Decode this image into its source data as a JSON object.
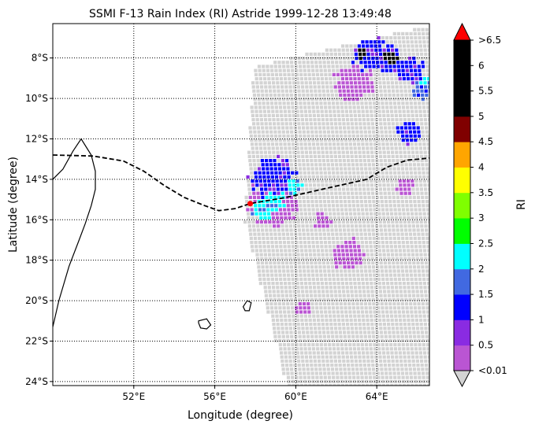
{
  "chart_data": {
    "type": "heatmap",
    "title": "SSMI F-13 Rain Index (RI) Astride 1999-12-28 13:49:48",
    "xlabel": "Longitude (degree)",
    "ylabel": "Latitude (degree)",
    "xlim": [
      48.0,
      66.6
    ],
    "ylim": [
      -24.2,
      -6.3
    ],
    "x_ticks": [
      {
        "value": 52,
        "label": "52°E"
      },
      {
        "value": 56,
        "label": "56°E"
      },
      {
        "value": 60,
        "label": "60°E"
      },
      {
        "value": 64,
        "label": "64°E"
      }
    ],
    "y_ticks": [
      {
        "value": -8,
        "label": "8°S"
      },
      {
        "value": -10,
        "label": "10°S"
      },
      {
        "value": -12,
        "label": "12°S"
      },
      {
        "value": -14,
        "label": "14°S"
      },
      {
        "value": -16,
        "label": "16°S"
      },
      {
        "value": -18,
        "label": "18°S"
      },
      {
        "value": -20,
        "label": "20°S"
      },
      {
        "value": -22,
        "label": "22°S"
      },
      {
        "value": -24,
        "label": "24°S"
      }
    ],
    "grid": true,
    "colorbar": {
      "label": "RI",
      "no_rain_color": "#d3d3d3",
      "under_color": "#d3d3d3",
      "over_color": "#ff0000",
      "levels": [
        {
          "label": "<0.01",
          "color": "#ba55d3"
        },
        {
          "label": "0.5",
          "color": "#8a2be2"
        },
        {
          "label": "1",
          "color": "#0000ff"
        },
        {
          "label": "1.5",
          "color": "#4169e1"
        },
        {
          "label": "2",
          "color": "#00ffff"
        },
        {
          "label": "2.5",
          "color": "#00ff00"
        },
        {
          "label": "3",
          "color": "#7fff00"
        },
        {
          "label": "3.5",
          "color": "#ffff00"
        },
        {
          "label": "4",
          "color": "#ffa500"
        },
        {
          "label": "4.5",
          "color": "#800000"
        },
        {
          "label": "5",
          "color": "#000000"
        },
        {
          "label": "5.5",
          "color": "#000000"
        },
        {
          "label": "6",
          "color": "#000000"
        },
        {
          "label": ">6.5",
          "color": "#000000"
        }
      ]
    },
    "swath": {
      "corners": [
        [
          57.8,
          -9.0
        ],
        [
          58.0,
          -8.3
        ],
        [
          66.6,
          -6.3
        ],
        [
          66.6,
          -24.2
        ],
        [
          59.5,
          -24.2
        ],
        [
          57.4,
          -16.0
        ]
      ]
    },
    "track": [
      [
        48.0,
        -12.8
      ],
      [
        50.0,
        -12.85
      ],
      [
        51.5,
        -13.1
      ],
      [
        52.5,
        -13.6
      ],
      [
        53.5,
        -14.3
      ],
      [
        54.5,
        -14.9
      ],
      [
        55.5,
        -15.3
      ],
      [
        56.2,
        -15.55
      ],
      [
        57.0,
        -15.45
      ],
      [
        57.75,
        -15.2
      ],
      [
        59.5,
        -14.9
      ],
      [
        61.5,
        -14.45
      ],
      [
        63.5,
        -14.0
      ],
      [
        64.5,
        -13.4
      ],
      [
        65.5,
        -13.05
      ],
      [
        66.6,
        -12.95
      ]
    ],
    "storm_center": [
      57.75,
      -15.2
    ],
    "rain_clusters": [
      {
        "lon": 58.8,
        "lat": -13.8,
        "radius": 1.1,
        "level": 2
      },
      {
        "lon": 58.3,
        "lat": -15.4,
        "radius": 0.6,
        "level": 4
      },
      {
        "lon": 58.9,
        "lat": -15.0,
        "radius": 0.5,
        "level": 4
      },
      {
        "lon": 59.8,
        "lat": -14.3,
        "radius": 0.4,
        "level": 4
      },
      {
        "lon": 58.8,
        "lat": -15.1,
        "radius": 1.2,
        "level": 0
      },
      {
        "lon": 63.6,
        "lat": -7.7,
        "radius": 0.9,
        "level": 2
      },
      {
        "lon": 64.5,
        "lat": -8.0,
        "radius": 0.7,
        "level": 2
      },
      {
        "lon": 65.5,
        "lat": -8.5,
        "radius": 0.7,
        "level": 2
      },
      {
        "lon": 63.2,
        "lat": -7.7,
        "radius": 0.3,
        "level": 10
      },
      {
        "lon": 64.6,
        "lat": -7.9,
        "radius": 0.3,
        "level": 10
      },
      {
        "lon": 62.8,
        "lat": -9.2,
        "radius": 1.0,
        "level": 0
      },
      {
        "lon": 66.2,
        "lat": -9.5,
        "radius": 0.5,
        "level": 3
      },
      {
        "lon": 66.4,
        "lat": -9.1,
        "radius": 0.3,
        "level": 4
      },
      {
        "lon": 65.5,
        "lat": -11.6,
        "radius": 0.6,
        "level": 2
      },
      {
        "lon": 65.3,
        "lat": -14.3,
        "radius": 0.5,
        "level": 0
      },
      {
        "lon": 62.5,
        "lat": -17.6,
        "radius": 0.8,
        "level": 0
      },
      {
        "lon": 60.3,
        "lat": -20.3,
        "radius": 0.4,
        "level": 0
      },
      {
        "lon": 61.2,
        "lat": -16.0,
        "radius": 0.4,
        "level": 0
      }
    ],
    "coastlines": [
      {
        "name": "madagascar",
        "closed": false,
        "points": [
          [
            48.0,
            -21.3
          ],
          [
            48.3,
            -20.0
          ],
          [
            48.8,
            -18.3
          ],
          [
            49.3,
            -17.0
          ],
          [
            49.6,
            -16.2
          ],
          [
            49.9,
            -15.3
          ],
          [
            50.1,
            -14.5
          ],
          [
            50.1,
            -13.6
          ],
          [
            49.9,
            -12.8
          ],
          [
            49.4,
            -12.0
          ],
          [
            49.0,
            -12.6
          ],
          [
            48.5,
            -13.5
          ],
          [
            48.0,
            -14.0
          ]
        ]
      },
      {
        "name": "reunion",
        "closed": true,
        "points": [
          [
            55.2,
            -21.0
          ],
          [
            55.6,
            -20.9
          ],
          [
            55.8,
            -21.2
          ],
          [
            55.6,
            -21.4
          ],
          [
            55.3,
            -21.35
          ],
          [
            55.2,
            -21.1
          ]
        ]
      },
      {
        "name": "mauritius",
        "closed": true,
        "points": [
          [
            57.4,
            -20.3
          ],
          [
            57.6,
            -20.0
          ],
          [
            57.8,
            -20.1
          ],
          [
            57.7,
            -20.5
          ],
          [
            57.5,
            -20.5
          ]
        ]
      }
    ]
  }
}
